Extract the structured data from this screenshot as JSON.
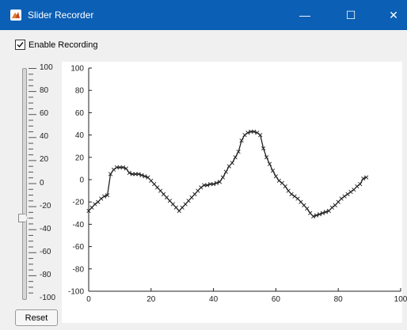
{
  "window": {
    "title": "Slider Recorder",
    "minimize_glyph": "—",
    "maximize_glyph": "☐",
    "close_glyph": "✕",
    "icon": "matlab-icon"
  },
  "controls": {
    "enable_recording_label": "Enable Recording",
    "enable_recording_checked": true,
    "reset_label": "Reset"
  },
  "slider": {
    "min": -100,
    "max": 100,
    "value": -30,
    "tick_labels": [
      "100",
      "80",
      "60",
      "40",
      "20",
      "0",
      "-20",
      "-40",
      "-60",
      "-80",
      "-100"
    ]
  },
  "chart_data": {
    "type": "line",
    "marker": "x",
    "line_color": "#222222",
    "xlim": [
      0,
      100
    ],
    "ylim": [
      -100,
      100
    ],
    "x_ticks": [
      0,
      20,
      40,
      60,
      80,
      100
    ],
    "y_ticks": [
      100,
      80,
      60,
      40,
      20,
      0,
      -20,
      -40,
      -60,
      -80,
      -100
    ],
    "grid": false,
    "points": [
      [
        0,
        -28
      ],
      [
        1,
        -25
      ],
      [
        2,
        -22
      ],
      [
        3,
        -20
      ],
      [
        4,
        -17
      ],
      [
        5,
        -15
      ],
      [
        6,
        -14
      ],
      [
        7,
        5
      ],
      [
        8,
        9
      ],
      [
        9,
        11
      ],
      [
        10,
        11
      ],
      [
        11,
        11
      ],
      [
        12,
        10
      ],
      [
        13,
        6
      ],
      [
        14,
        5
      ],
      [
        15,
        5
      ],
      [
        16,
        5
      ],
      [
        17,
        4
      ],
      [
        18,
        3
      ],
      [
        19,
        2
      ],
      [
        20,
        -1
      ],
      [
        21,
        -4
      ],
      [
        22,
        -7
      ],
      [
        23,
        -10
      ],
      [
        24,
        -13
      ],
      [
        25,
        -16
      ],
      [
        26,
        -19
      ],
      [
        27,
        -22
      ],
      [
        28,
        -25
      ],
      [
        29,
        -28
      ],
      [
        30,
        -25
      ],
      [
        31,
        -22
      ],
      [
        32,
        -19
      ],
      [
        33,
        -16
      ],
      [
        34,
        -13
      ],
      [
        35,
        -10
      ],
      [
        36,
        -7
      ],
      [
        37,
        -5
      ],
      [
        38,
        -5
      ],
      [
        39,
        -4
      ],
      [
        40,
        -4
      ],
      [
        41,
        -3
      ],
      [
        42,
        -2
      ],
      [
        43,
        2
      ],
      [
        44,
        7
      ],
      [
        45,
        12
      ],
      [
        46,
        15
      ],
      [
        47,
        20
      ],
      [
        48,
        25
      ],
      [
        49,
        35
      ],
      [
        50,
        40
      ],
      [
        51,
        42
      ],
      [
        52,
        43
      ],
      [
        53,
        43
      ],
      [
        54,
        42
      ],
      [
        55,
        40
      ],
      [
        56,
        28
      ],
      [
        57,
        20
      ],
      [
        58,
        14
      ],
      [
        59,
        8
      ],
      [
        60,
        3
      ],
      [
        61,
        -1
      ],
      [
        62,
        -3
      ],
      [
        63,
        -6
      ],
      [
        64,
        -10
      ],
      [
        65,
        -13
      ],
      [
        66,
        -15
      ],
      [
        67,
        -17
      ],
      [
        68,
        -20
      ],
      [
        69,
        -23
      ],
      [
        70,
        -26
      ],
      [
        71,
        -30
      ],
      [
        72,
        -33
      ],
      [
        73,
        -32
      ],
      [
        74,
        -31
      ],
      [
        75,
        -30
      ],
      [
        76,
        -29
      ],
      [
        77,
        -28
      ],
      [
        78,
        -25
      ],
      [
        79,
        -23
      ],
      [
        80,
        -20
      ],
      [
        81,
        -17
      ],
      [
        82,
        -15
      ],
      [
        83,
        -13
      ],
      [
        84,
        -11
      ],
      [
        85,
        -9
      ],
      [
        86,
        -6
      ],
      [
        87,
        -4
      ],
      [
        88,
        1
      ],
      [
        89,
        2
      ]
    ]
  }
}
